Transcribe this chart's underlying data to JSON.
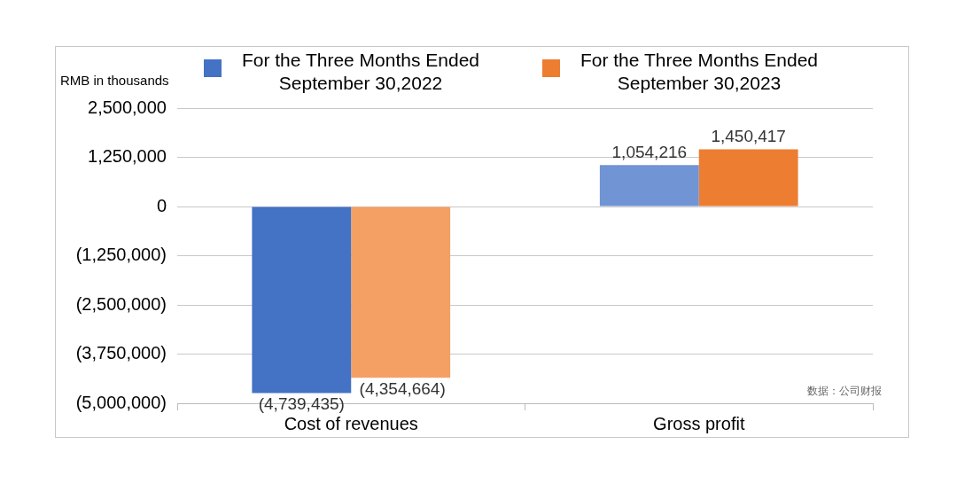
{
  "chart_data": {
    "type": "bar",
    "ylabel": "RMB in thousands",
    "categories": [
      "Cost of revenues",
      "Gross profit"
    ],
    "series": [
      {
        "name": "For the Three Months Ended September 30,2022",
        "color": "#4472c4",
        "colors": [
          "#4472c4",
          "#7094d4"
        ],
        "values": [
          -4739435,
          1054216
        ],
        "value_labels": [
          "(4,739,435)",
          "1,054,216"
        ]
      },
      {
        "name": "For the Three Months Ended September 30,2023",
        "color": "#ed7d31",
        "colors": [
          "#f4a064",
          "#ed7d31"
        ],
        "values": [
          -4354664,
          1450417
        ],
        "value_labels": [
          "(4,354,664)",
          "1,450,417"
        ]
      }
    ],
    "ylim": [
      -5000000,
      2500000
    ],
    "yticks": [
      {
        "value": -5000000,
        "label": "(5,000,000)"
      },
      {
        "value": -3750000,
        "label": "(3,750,000)"
      },
      {
        "value": -2500000,
        "label": "(2,500,000)"
      },
      {
        "value": -1250000,
        "label": "(1,250,000)"
      },
      0,
      {
        "value": 1250000,
        "label": "1,250,000"
      },
      {
        "value": 2500000,
        "label": "2,500,000"
      }
    ],
    "grid": "y",
    "legend": "top",
    "annotations": [
      "数据：公司财报"
    ]
  }
}
